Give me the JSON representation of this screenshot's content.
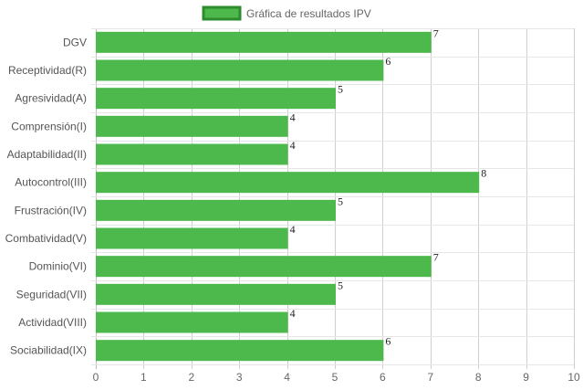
{
  "chart_data": {
    "type": "bar",
    "orientation": "horizontal",
    "title": "",
    "xlabel": "",
    "ylabel": "",
    "categories": [
      "DGV",
      "Receptividad(R)",
      "Agresividad(A)",
      "Comprensión(I)",
      "Adaptabilidad(II)",
      "Autocontrol(III)",
      "Frustración(IV)",
      "Combatividad(V)",
      "Dominio(VI)",
      "Seguridad(VII)",
      "Actividad(VIII)",
      "Sociabilidad(IX)"
    ],
    "series": [
      {
        "name": "Gráfica de resultados IPV",
        "values": [
          7,
          6,
          5,
          4,
          4,
          8,
          5,
          4,
          7,
          5,
          4,
          6
        ],
        "color": "#4db84b",
        "border_color": "#2e8b2e"
      }
    ],
    "xlim": [
      0,
      10
    ],
    "xticks": [
      0,
      1,
      2,
      3,
      4,
      5,
      6,
      7,
      8,
      9,
      10
    ],
    "grid": true,
    "legend": "top-center",
    "data_labels": true
  }
}
